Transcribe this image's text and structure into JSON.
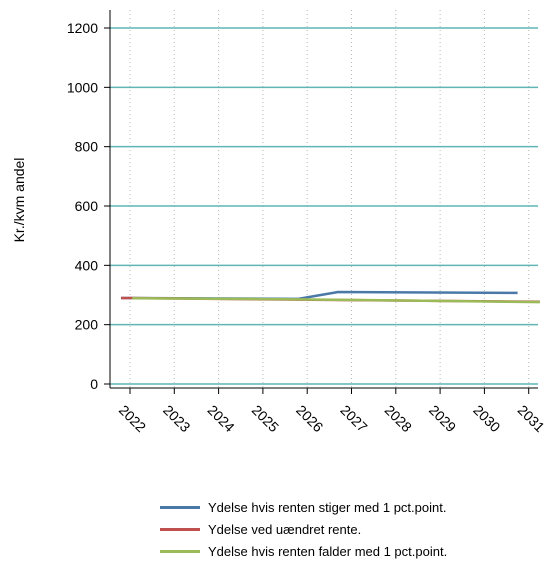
{
  "chart_data": {
    "type": "line",
    "title": "",
    "xlabel": "",
    "ylabel": "Kr./kvm andel",
    "x_ticks": [
      "2022",
      "2023",
      "2024",
      "2025",
      "2026",
      "2027",
      "2028",
      "2029",
      "2030",
      "2031"
    ],
    "xlim": [
      2021.8,
      2031.25
    ],
    "ylim": [
      0,
      1200
    ],
    "y_ticks": [
      0,
      200,
      400,
      600,
      800,
      1000,
      1200
    ],
    "grid": {
      "horizontal": true,
      "vertical": "dotted"
    },
    "legend_position": "bottom",
    "series": [
      {
        "name": "Ydelse hvis renten stiger med 1 pct.point.",
        "color": "#4a79a8",
        "x": [
          2021.8,
          2025.8,
          2026.7,
          2030.75
        ],
        "y": [
          290,
          287,
          310,
          307
        ]
      },
      {
        "name": "Ydelse ved uændret rente.",
        "color": "#c0504d",
        "x": [
          2021.8,
          2031.25
        ],
        "y": [
          290,
          277
        ]
      },
      {
        "name": "Ydelse hvis renten falder med 1 pct.point.",
        "color": "#9bbb59",
        "x": [
          2022.05,
          2025.5,
          2031.25
        ],
        "y": [
          289,
          286,
          276
        ]
      }
    ]
  },
  "colors": {
    "gridline": "#5fb5b5",
    "axis": "#000000",
    "vgrid": "#b8b8b8"
  }
}
